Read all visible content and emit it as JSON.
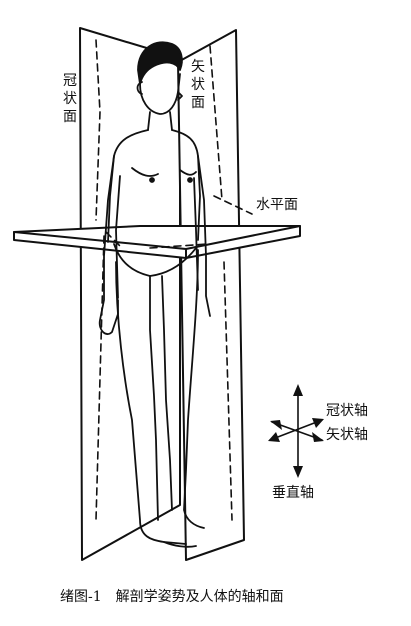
{
  "planes": {
    "coronal": "冠状面",
    "sagittal": "矢状面",
    "horizontal": "水平面"
  },
  "axes": {
    "coronal_axis": "冠状轴",
    "sagittal_axis": "矢状轴",
    "vertical_axis": "垂直轴"
  },
  "caption": "绪图-1　解剖学姿势及人体的轴和面",
  "colors": {
    "ink": "#111111",
    "background": "#ffffff"
  }
}
